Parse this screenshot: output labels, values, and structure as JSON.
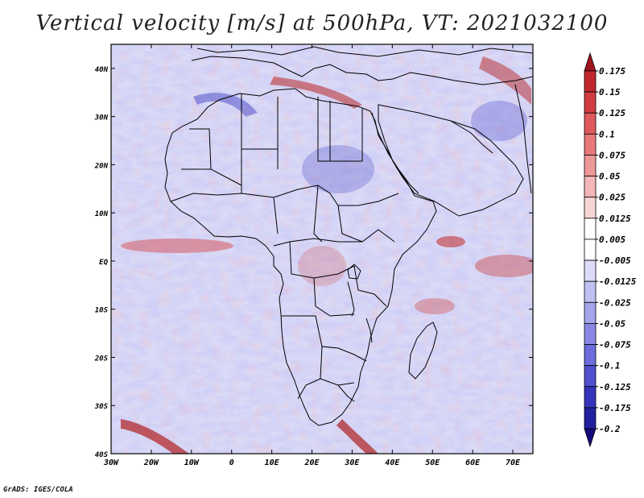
{
  "title": "Vertical velocity [m/s] at 500hPa, VT: 2021032100",
  "credit": "GrADS: IGES/COLA",
  "map": {
    "lon_range": [
      -30,
      75
    ],
    "lat_range": [
      -40,
      45
    ],
    "lon_labels": [
      "30W",
      "20W",
      "10W",
      "0",
      "10E",
      "20E",
      "30E",
      "40E",
      "50E",
      "60E",
      "70E"
    ],
    "lat_labels": [
      "40N",
      "30N",
      "20N",
      "10N",
      "EQ",
      "10S",
      "20S",
      "30S",
      "40S"
    ]
  },
  "colorbar": {
    "labels": [
      "0.175",
      "0.15",
      "0.125",
      "0.1",
      "0.075",
      "0.05",
      "0.025",
      "0.0125",
      "0.005",
      "-0.005",
      "-0.0125",
      "-0.025",
      "-0.05",
      "-0.075",
      "-0.1",
      "-0.125",
      "-0.175",
      "-0.2"
    ],
    "colors": [
      "#a0141e",
      "#c0282d",
      "#d23c41",
      "#e05a5c",
      "#e8787a",
      "#ef9898",
      "#f4b6b6",
      "#f9d6d6",
      "#ffffff",
      "#ffffff",
      "#dcdcf8",
      "#c0c0f2",
      "#a4a4ec",
      "#8888e4",
      "#6c6cdc",
      "#5050d0",
      "#3434bc",
      "#2020a0",
      "#140a7a"
    ]
  },
  "legend_colors": {
    "background_blue": "#c8c8f2",
    "background_red": "#f2c8c8",
    "border": "#000000"
  }
}
